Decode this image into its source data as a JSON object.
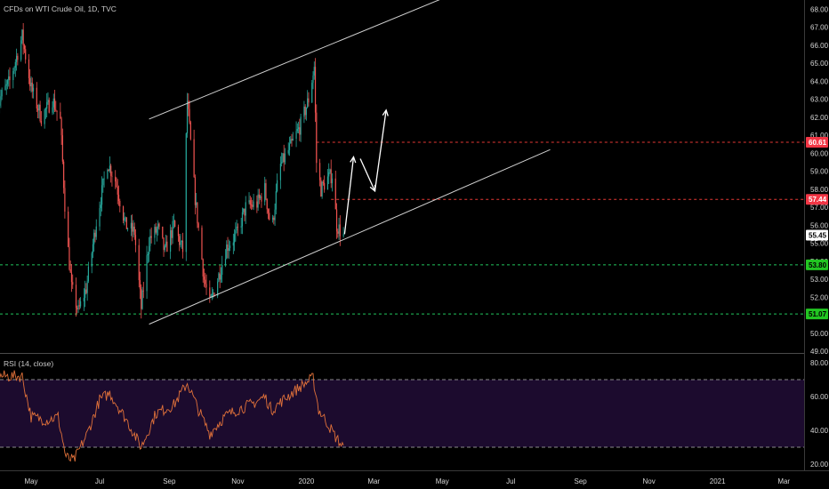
{
  "header": {
    "title": "CFDs on WTI Crude Oil, 1D, TVC"
  },
  "rsi_panel": {
    "title": "RSI (14, close)"
  },
  "colors": {
    "background": "#000000",
    "up": "#26a69a",
    "down": "#ef5350",
    "channel": "#d0d0d0",
    "projection": "#ffffff",
    "resistance": "#e53935",
    "support": "#22c55e",
    "rsi_line": "#e0713a",
    "rsi_band": "#1c0b2e",
    "price_tag": "#ffffff",
    "resistance_tag": "#f23645",
    "support_tag": "#22c522"
  },
  "chart_data": [
    {
      "type": "candlestick",
      "title": "CFDs on WTI Crude Oil, 1D, TVC",
      "x_ticks": [
        "May",
        "Jul",
        "Sep",
        "Nov",
        "2020",
        "Mar",
        "May",
        "Jul",
        "Sep",
        "Nov",
        "2021",
        "Mar"
      ],
      "y_ticks": [
        "49.00",
        "50.00",
        "51.00",
        "52.00",
        "53.00",
        "54.00",
        "55.00",
        "56.00",
        "57.00",
        "58.00",
        "59.00",
        "60.00",
        "61.00",
        "62.00",
        "63.00",
        "64.00",
        "65.00",
        "66.00",
        "67.00",
        "68.00"
      ],
      "ylim": [
        49,
        68.6
      ],
      "grid": false,
      "series": [
        {
          "anchors": [
            [
              "2019-04-01",
              62.8
            ],
            [
              "2019-04-12",
              64.0
            ],
            [
              "2019-04-23",
              66.5
            ],
            [
              "2019-05-01",
              63.6
            ],
            [
              "2019-05-10",
              62.0
            ],
            [
              "2019-05-20",
              63.0
            ],
            [
              "2019-05-27",
              61.8
            ],
            [
              "2019-06-01",
              56.0
            ],
            [
              "2019-06-06",
              52.5
            ],
            [
              "2019-06-12",
              51.2
            ],
            [
              "2019-06-19",
              52.5
            ],
            [
              "2019-06-24",
              54.5
            ],
            [
              "2019-06-28",
              56.2
            ],
            [
              "2019-07-08",
              59.5
            ],
            [
              "2019-07-15",
              58.5
            ],
            [
              "2019-07-24",
              56.0
            ],
            [
              "2019-08-01",
              55.6
            ],
            [
              "2019-08-07",
              51.4
            ],
            [
              "2019-08-14",
              55.2
            ],
            [
              "2019-08-22",
              55.8
            ],
            [
              "2019-08-28",
              54.5
            ],
            [
              "2019-09-05",
              56.0
            ],
            [
              "2019-09-13",
              54.6
            ],
            [
              "2019-09-17",
              62.9
            ],
            [
              "2019-09-24",
              57.5
            ],
            [
              "2019-10-02",
              53.0
            ],
            [
              "2019-10-07",
              51.6
            ],
            [
              "2019-10-15",
              53.2
            ],
            [
              "2019-10-22",
              54.8
            ],
            [
              "2019-10-31",
              55.5
            ],
            [
              "2019-11-08",
              57.0
            ],
            [
              "2019-11-18",
              57.2
            ],
            [
              "2019-11-25",
              58.0
            ],
            [
              "2019-12-01",
              55.6
            ],
            [
              "2019-12-08",
              59.2
            ],
            [
              "2019-12-19",
              60.5
            ],
            [
              "2019-12-27",
              61.6
            ],
            [
              "2020-01-03",
              63.0
            ],
            [
              "2020-01-08",
              64.8
            ],
            [
              "2020-01-10",
              59.5
            ],
            [
              "2020-01-14",
              58.0
            ],
            [
              "2020-01-20",
              58.6
            ],
            [
              "2020-01-24",
              58.8
            ],
            [
              "2020-01-28",
              56.0
            ],
            [
              "2020-02-03",
              55.4
            ]
          ],
          "last_price": 55.45
        }
      ],
      "annotations": {
        "resistance_levels": [
          60.61,
          57.44
        ],
        "support_levels": [
          53.8,
          51.07
        ],
        "price_tags": [
          "60.61",
          "57.44",
          "55.45",
          "53.80",
          "51.07"
        ],
        "channel": {
          "upper": [
            [
              "2019-08-14",
              61.9
            ],
            [
              "2020-05-01",
              68.6
            ]
          ],
          "lower": [
            [
              "2019-08-14",
              50.5
            ],
            [
              "2020-08-05",
              60.2
            ]
          ]
        },
        "projection_path": [
          [
            "2020-02-04",
            55.5
          ],
          [
            "2020-02-12",
            59.8
          ],
          [
            "2020-02-18",
            59.7
          ],
          [
            "2020-03-02",
            57.9
          ],
          [
            "2020-03-12",
            62.4
          ]
        ]
      }
    },
    {
      "type": "line",
      "title": "RSI (14, close)",
      "y_ticks": [
        "20.00",
        "40.00",
        "60.00",
        "80.00"
      ],
      "ylim": [
        15,
        83
      ],
      "band": [
        30,
        70
      ],
      "grid": false,
      "series": [
        {
          "anchors": [
            [
              "2019-04-01",
              72
            ],
            [
              "2019-04-23",
              72
            ],
            [
              "2019-05-01",
              48
            ],
            [
              "2019-05-15",
              46
            ],
            [
              "2019-05-25",
              48
            ],
            [
              "2019-06-01",
              24
            ],
            [
              "2019-06-08",
              22
            ],
            [
              "2019-06-20",
              38
            ],
            [
              "2019-07-01",
              58
            ],
            [
              "2019-07-10",
              62
            ],
            [
              "2019-07-25",
              46
            ],
            [
              "2019-08-07",
              30
            ],
            [
              "2019-08-20",
              50
            ],
            [
              "2019-09-05",
              55
            ],
            [
              "2019-09-17",
              68
            ],
            [
              "2019-09-27",
              52
            ],
            [
              "2019-10-07",
              38
            ],
            [
              "2019-10-20",
              48
            ],
            [
              "2019-10-31",
              52
            ],
            [
              "2019-11-15",
              56
            ],
            [
              "2019-11-25",
              60
            ],
            [
              "2019-12-01",
              52
            ],
            [
              "2019-12-15",
              60
            ],
            [
              "2019-12-27",
              66
            ],
            [
              "2020-01-07",
              71
            ],
            [
              "2020-01-12",
              52
            ],
            [
              "2020-01-20",
              44
            ],
            [
              "2020-01-27",
              36
            ],
            [
              "2020-02-03",
              30
            ]
          ]
        }
      ]
    }
  ]
}
